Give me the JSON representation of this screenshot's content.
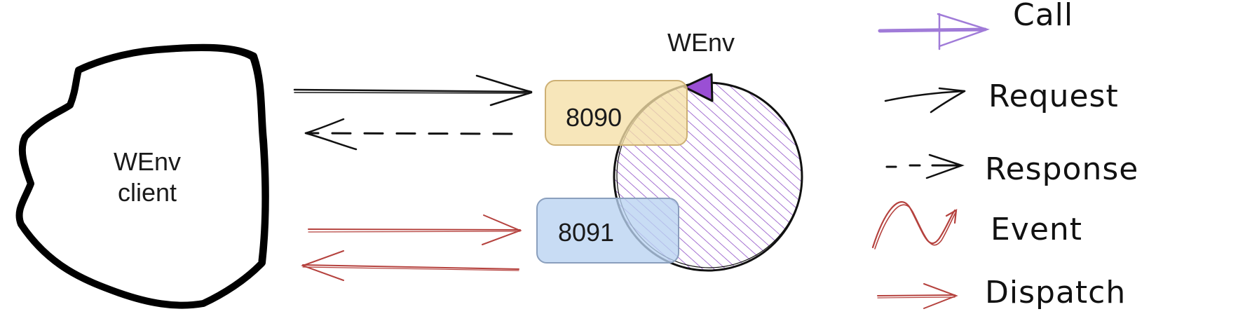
{
  "client": {
    "line1": "WEnv",
    "line2": "client"
  },
  "server": {
    "label": "WEnv"
  },
  "ports": {
    "http": "8090",
    "ws": "8091"
  },
  "legend": {
    "call": "Call",
    "request": "Request",
    "response": "Response",
    "event": "Event",
    "dispatch": "Dispatch"
  },
  "colors": {
    "ink": "#111111",
    "dispatch": "#b5423e",
    "call": "#a07bd8",
    "server_fill": "#8e4ec6",
    "port_http_fill": "#f5dfa6",
    "port_ws_fill": "#b9d2f1"
  }
}
